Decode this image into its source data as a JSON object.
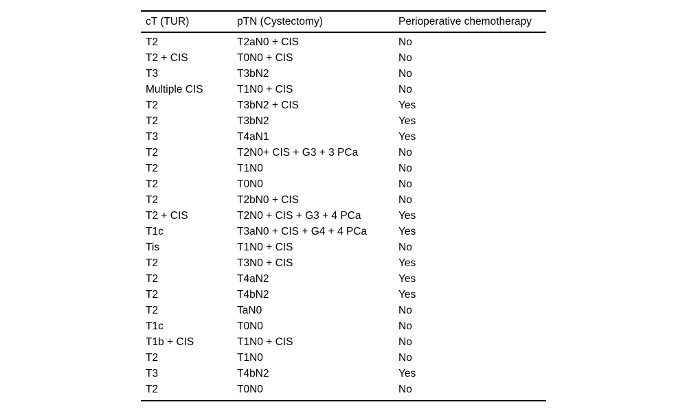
{
  "page": {
    "background": "#ffffff",
    "text_color": "#000000"
  },
  "table": {
    "columns": [
      "cT (TUR)",
      "pTN (Cystectomy)",
      "Perioperative chemotherapy"
    ],
    "rows": [
      [
        "T2",
        "T2aN0 + CIS",
        "No"
      ],
      [
        "T2 + CIS",
        "T0N0 + CIS",
        "No"
      ],
      [
        "T3",
        "T3bN2",
        "No"
      ],
      [
        "Multiple CIS",
        "T1N0 + CIS",
        "No"
      ],
      [
        "T2",
        "T3bN2 + CIS",
        "Yes"
      ],
      [
        "T2",
        "T3bN2",
        "Yes"
      ],
      [
        "T3",
        "T4aN1",
        "Yes"
      ],
      [
        "T2",
        "T2N0+ CIS + G3 + 3 PCa",
        "No"
      ],
      [
        "T2",
        "T1N0",
        "No"
      ],
      [
        "T2",
        "T0N0",
        "No"
      ],
      [
        "T2",
        "T2bN0 + CIS",
        "No"
      ],
      [
        "T2 + CIS",
        "T2N0 + CIS + G3 + 4 PCa",
        "Yes"
      ],
      [
        "T1c",
        "T3aN0 + CIS + G4 + 4 PCa",
        "Yes"
      ],
      [
        "Tis",
        "T1N0 + CIS",
        "No"
      ],
      [
        "T2",
        "T3N0 + CIS",
        "Yes"
      ],
      [
        "T2",
        "T4aN2",
        "Yes"
      ],
      [
        "T2",
        "T4bN2",
        "Yes"
      ],
      [
        "T2",
        "TaN0",
        "No"
      ],
      [
        "T1c",
        "T0N0",
        "No"
      ],
      [
        "T1b + CIS",
        "T1N0 + CIS",
        "No"
      ],
      [
        "T2",
        "T1N0",
        "No"
      ],
      [
        "T3",
        "T4bN2",
        "Yes"
      ],
      [
        "T2",
        "T0N0",
        "No"
      ]
    ]
  }
}
